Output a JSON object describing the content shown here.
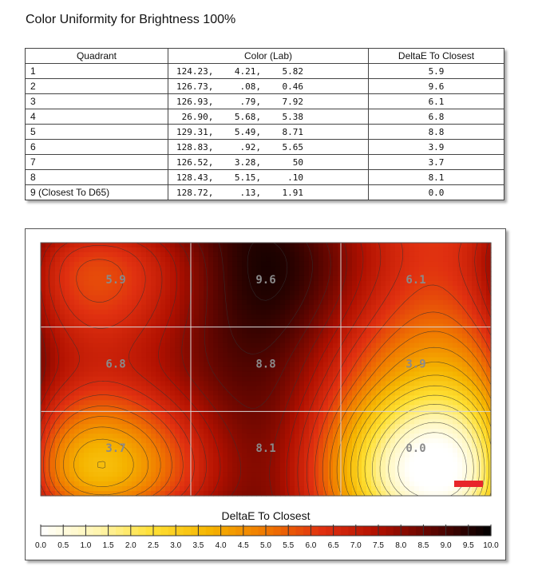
{
  "page": {
    "title": "Color Uniformity for Brightness 100%"
  },
  "table": {
    "headers": [
      "Quadrant",
      "Color (Lab)",
      "DeltaE To Closest"
    ],
    "rows": [
      {
        "quadrant": "1",
        "lab": "124.23,    4.21,    5.82",
        "deltae": "5.9"
      },
      {
        "quadrant": "2",
        "lab": "126.73,     .08,    0.46",
        "deltae": "9.6"
      },
      {
        "quadrant": "3",
        "lab": "126.93,     .79,    7.92",
        "deltae": "6.1"
      },
      {
        "quadrant": "4",
        "lab": " 26.90,    5.68,    5.38",
        "deltae": "6.8"
      },
      {
        "quadrant": "5",
        "lab": "129.31,    5.49,    8.71",
        "deltae": "8.8"
      },
      {
        "quadrant": "6",
        "lab": "128.83,     .92,    5.65",
        "deltae": "3.9"
      },
      {
        "quadrant": "7",
        "lab": "126.52,    3.28,      50",
        "deltae": "3.7"
      },
      {
        "quadrant": "8",
        "lab": "128.43,    5.15,     .10",
        "deltae": "8.1"
      },
      {
        "quadrant": "9 (Closest To D65)",
        "lab": "128.72,     .13,    1.91",
        "deltae": "0.0"
      }
    ]
  },
  "chart_data": {
    "type": "heatmap",
    "title": "DeltaE To Closest",
    "grid_rows": 3,
    "grid_cols": 3,
    "cells": [
      {
        "row": 0,
        "col": 0,
        "value": 5.9,
        "label": "5.9"
      },
      {
        "row": 0,
        "col": 1,
        "value": 9.6,
        "label": "9.6"
      },
      {
        "row": 0,
        "col": 2,
        "value": 6.1,
        "label": "6.1"
      },
      {
        "row": 1,
        "col": 0,
        "value": 6.8,
        "label": "6.8"
      },
      {
        "row": 1,
        "col": 1,
        "value": 8.8,
        "label": "8.8"
      },
      {
        "row": 1,
        "col": 2,
        "value": 3.9,
        "label": "3.9"
      },
      {
        "row": 2,
        "col": 0,
        "value": 3.7,
        "label": "3.7"
      },
      {
        "row": 2,
        "col": 1,
        "value": 8.1,
        "label": "8.1"
      },
      {
        "row": 2,
        "col": 2,
        "value": 0.0,
        "label": "0.0"
      }
    ],
    "scale_range": [
      0,
      10
    ],
    "scale_ticks": [
      "0.0",
      "0.5",
      "1.0",
      "1.5",
      "2.0",
      "2.5",
      "3.0",
      "3.5",
      "4.0",
      "4.5",
      "5.0",
      "5.5",
      "6.0",
      "6.5",
      "7.0",
      "7.5",
      "8.0",
      "8.5",
      "9.0",
      "9.5",
      "10.0"
    ],
    "colorscale": [
      "#ffffff",
      "#fff5b0",
      "#ffe033",
      "#f5b400",
      "#f07800",
      "#e03010",
      "#b01000",
      "#5a0500",
      "#000000"
    ],
    "contour_interval": 0.5
  },
  "colors": {
    "grid": "#d8d8d8",
    "cell_label": "#8a8a8a",
    "contour": "#333333",
    "marker": "#e8262a"
  }
}
